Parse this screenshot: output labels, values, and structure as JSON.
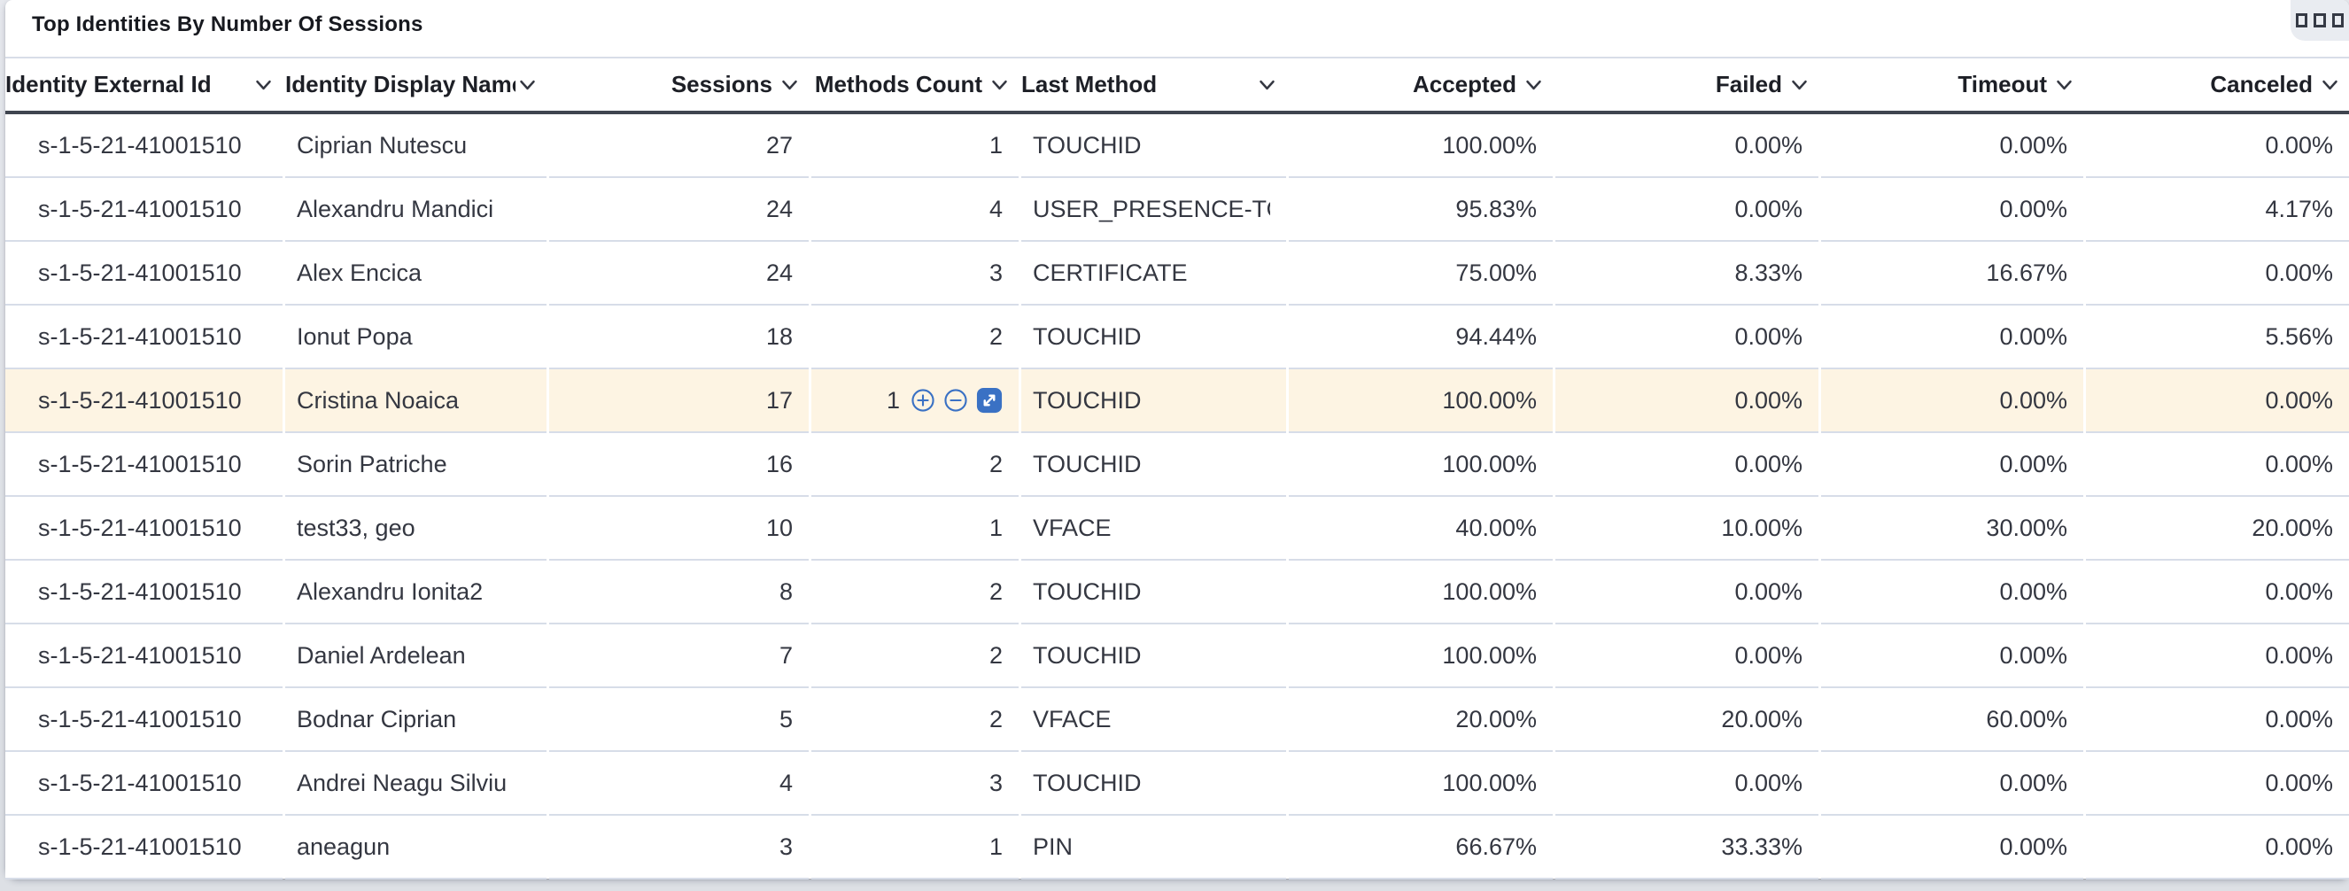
{
  "panel": {
    "title": "Top Identities By Number Of Sessions",
    "action_button_icon": "grid-options-icon"
  },
  "colors": {
    "accent_blue": "#3a71c4",
    "highlight_row_bg": "#fdf4e3",
    "row_divider": "#d7dde8",
    "header_underline": "#404550",
    "text": "#343741",
    "header_text": "#1d1f26",
    "panel_action_bg": "#e9ecf1",
    "page_bg": "#e3e5ea"
  },
  "table": {
    "columns": [
      {
        "id": "identity_external_id",
        "label": "Identity External Id",
        "align": "left"
      },
      {
        "id": "identity_display_name",
        "label": "Identity Display Name",
        "align": "left"
      },
      {
        "id": "sessions",
        "label": "Sessions",
        "align": "right"
      },
      {
        "id": "methods_count",
        "label": "Methods Count",
        "align": "right"
      },
      {
        "id": "last_method",
        "label": "Last Method",
        "align": "left"
      },
      {
        "id": "accepted",
        "label": "Accepted",
        "align": "right"
      },
      {
        "id": "failed",
        "label": "Failed",
        "align": "right"
      },
      {
        "id": "timeout",
        "label": "Timeout",
        "align": "right"
      },
      {
        "id": "canceled",
        "label": "Canceled",
        "align": "right"
      }
    ],
    "cell_action_icons": [
      "filter-for-icon",
      "filter-out-icon",
      "expand-cell-icon"
    ],
    "rows": [
      {
        "cells": [
          "s-1-5-21-41001510",
          "Ciprian Nutescu",
          "27",
          "1",
          "TOUCHID",
          "100.00%",
          "0.00%",
          "0.00%",
          "0.00%"
        ],
        "highlighted": false
      },
      {
        "cells": [
          "s-1-5-21-41001510",
          "Alexandru Mandici",
          "24",
          "4",
          "USER_PRESENCE-TOUCHID",
          "95.83%",
          "0.00%",
          "0.00%",
          "4.17%"
        ],
        "highlighted": false
      },
      {
        "cells": [
          "s-1-5-21-41001510",
          "Alex Encica",
          "24",
          "3",
          "CERTIFICATE",
          "75.00%",
          "8.33%",
          "16.67%",
          "0.00%"
        ],
        "highlighted": false
      },
      {
        "cells": [
          "s-1-5-21-41001510",
          "Ionut Popa",
          "18",
          "2",
          "TOUCHID",
          "94.44%",
          "0.00%",
          "0.00%",
          "5.56%"
        ],
        "highlighted": false
      },
      {
        "cells": [
          "s-1-5-21-41001510",
          "Cristina Noaica",
          "17",
          "1",
          "TOUCHID",
          "100.00%",
          "0.00%",
          "0.00%",
          "0.00%"
        ],
        "highlighted": true,
        "actions_cell": 3
      },
      {
        "cells": [
          "s-1-5-21-41001510",
          "Sorin Patriche",
          "16",
          "2",
          "TOUCHID",
          "100.00%",
          "0.00%",
          "0.00%",
          "0.00%"
        ],
        "highlighted": false
      },
      {
        "cells": [
          "s-1-5-21-41001510",
          "test33, geo",
          "10",
          "1",
          "VFACE",
          "40.00%",
          "10.00%",
          "30.00%",
          "20.00%"
        ],
        "highlighted": false
      },
      {
        "cells": [
          "s-1-5-21-41001510",
          "Alexandru Ionita2",
          "8",
          "2",
          "TOUCHID",
          "100.00%",
          "0.00%",
          "0.00%",
          "0.00%"
        ],
        "highlighted": false
      },
      {
        "cells": [
          "s-1-5-21-41001510",
          "Daniel Ardelean",
          "7",
          "2",
          "TOUCHID",
          "100.00%",
          "0.00%",
          "0.00%",
          "0.00%"
        ],
        "highlighted": false
      },
      {
        "cells": [
          "s-1-5-21-41001510",
          "Bodnar Ciprian",
          "5",
          "2",
          "VFACE",
          "20.00%",
          "20.00%",
          "60.00%",
          "0.00%"
        ],
        "highlighted": false
      },
      {
        "cells": [
          "s-1-5-21-41001510",
          "Andrei Neagu Silviu",
          "4",
          "3",
          "TOUCHID",
          "100.00%",
          "0.00%",
          "0.00%",
          "0.00%"
        ],
        "highlighted": false
      },
      {
        "cells": [
          "s-1-5-21-41001510",
          "aneagun",
          "3",
          "1",
          "PIN",
          "66.67%",
          "33.33%",
          "0.00%",
          "0.00%"
        ],
        "highlighted": false
      }
    ]
  }
}
